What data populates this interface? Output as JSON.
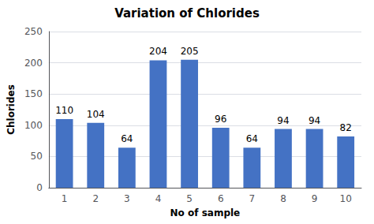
{
  "chart_data": {
    "type": "bar",
    "title": "Variation of Chlorides",
    "xlabel": "No of sample",
    "ylabel": "Chlorides",
    "categories": [
      "1",
      "2",
      "3",
      "4",
      "5",
      "6",
      "7",
      "8",
      "9",
      "10"
    ],
    "values": [
      110,
      104,
      64,
      204,
      205,
      96,
      64,
      94,
      94,
      82
    ],
    "color": "#4472C4",
    "ylim": [
      0,
      250
    ],
    "yticks": [
      0,
      50,
      100,
      150,
      200,
      250
    ],
    "grid": true,
    "data_labels": true
  }
}
